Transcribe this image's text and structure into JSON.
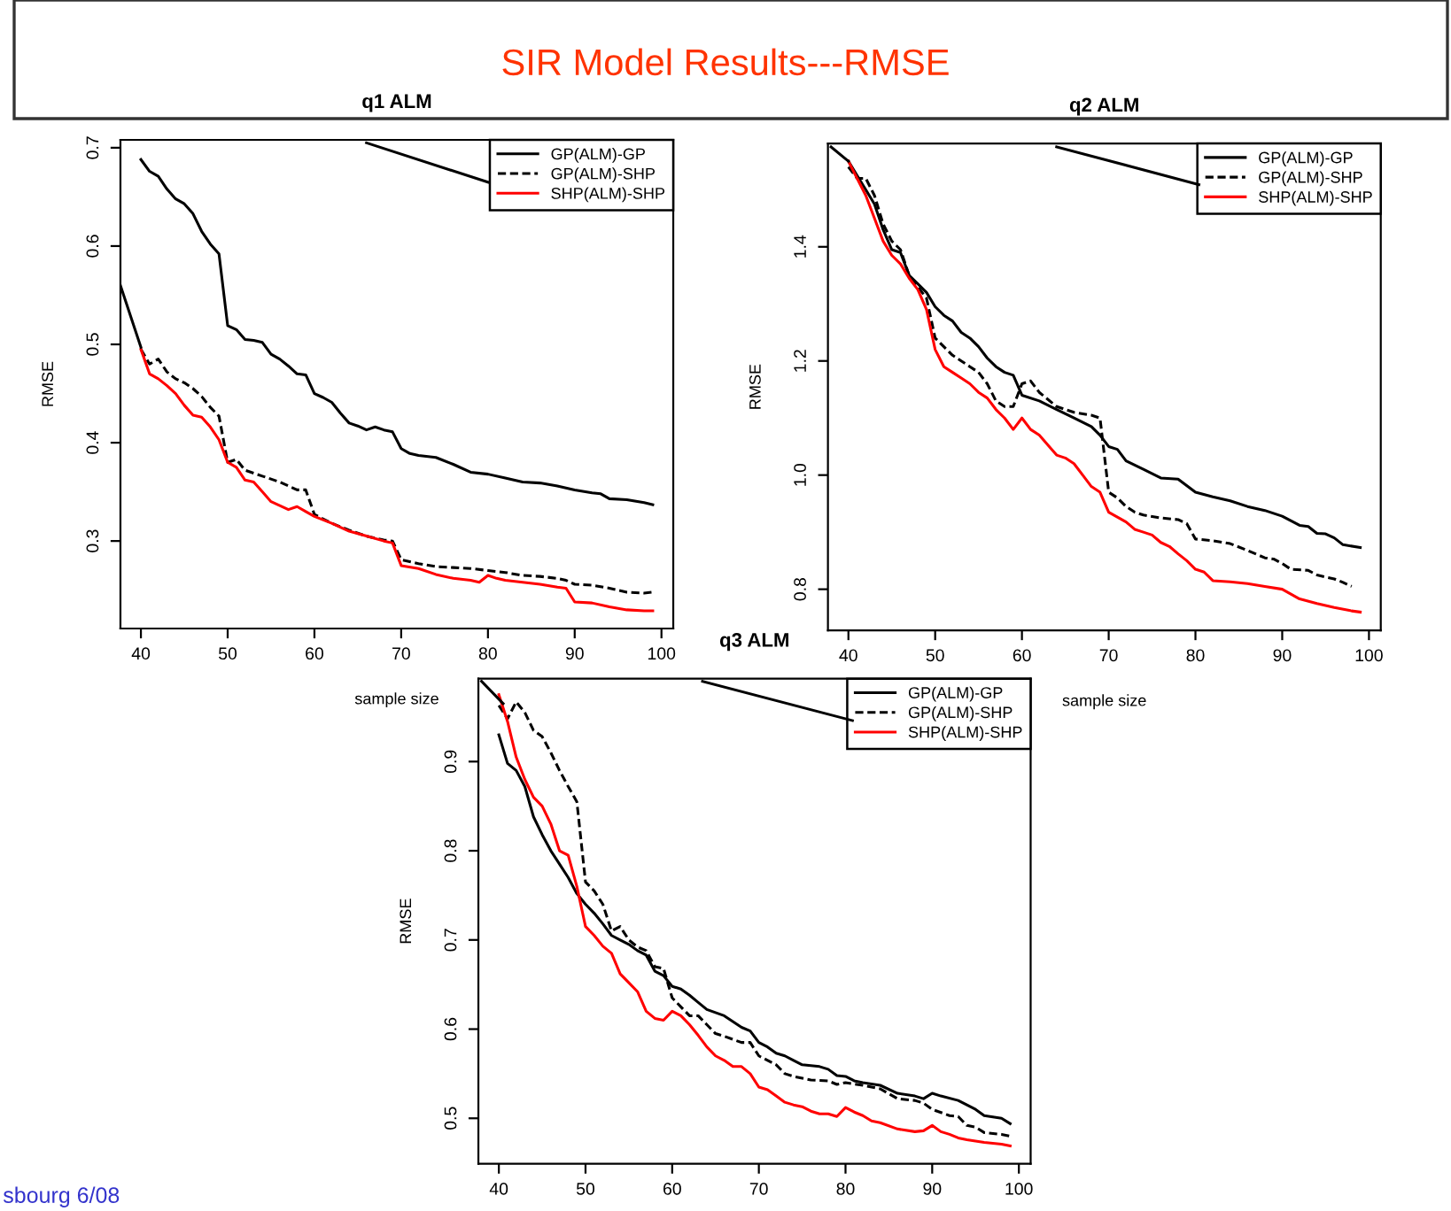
{
  "chart_data": [
    {
      "type": "other",
      "title": "SIR Model Results---RMSE",
      "annotations": [
        "sbourg 6/08"
      ]
    },
    {
      "type": "line",
      "title": "q1 ALM",
      "xlabel": "sample size",
      "ylabel": "RMSE",
      "xlim": [
        37.64,
        101.36
      ],
      "ylim": [
        0.211,
        0.708
      ],
      "xticks": [
        40,
        50,
        60,
        70,
        80,
        90,
        100
      ],
      "yticks": [
        0.3,
        0.4,
        0.5,
        0.6,
        0.7
      ],
      "legend": "top right",
      "series": [
        {
          "name": "GP(ALM)-GP",
          "color": "#000000",
          "line_style": "solid",
          "x": [
            40,
            41,
            42,
            43,
            44,
            45,
            46,
            47,
            48,
            49,
            50,
            51,
            52,
            53,
            54,
            55,
            56,
            57,
            58,
            59,
            60,
            61,
            62,
            63,
            64,
            65,
            66,
            67,
            68,
            69,
            70,
            71,
            72,
            74,
            76,
            78,
            80,
            82,
            84,
            86,
            88,
            90,
            92,
            93,
            94,
            96,
            98,
            99
          ],
          "values": [
            0.688,
            0.676,
            0.671,
            0.658,
            0.648,
            0.643,
            0.633,
            0.615,
            0.602,
            0.592,
            0.519,
            0.515,
            0.505,
            0.504,
            0.502,
            0.49,
            0.485,
            0.478,
            0.47,
            0.469,
            0.45,
            0.446,
            0.441,
            0.43,
            0.42,
            0.417,
            0.413,
            0.416,
            0.413,
            0.411,
            0.394,
            0.389,
            0.387,
            0.385,
            0.378,
            0.37,
            0.368,
            0.364,
            0.36,
            0.359,
            0.356,
            0.352,
            0.349,
            0.348,
            0.343,
            0.342,
            0.339,
            0.337
          ]
        },
        {
          "name": "GP(ALM)-SHP",
          "color": "#000000",
          "line_style": "dashed",
          "x": [
            40,
            41,
            42,
            43,
            44,
            45,
            46,
            47,
            48,
            49,
            50,
            51,
            52,
            54,
            56,
            58,
            59,
            60,
            62,
            64,
            66,
            68,
            69,
            70,
            72,
            74,
            76,
            78,
            80,
            82,
            84,
            86,
            88,
            89,
            90,
            92,
            94,
            96,
            98,
            99
          ],
          "values": [
            0.495,
            0.48,
            0.485,
            0.472,
            0.465,
            0.461,
            0.455,
            0.447,
            0.436,
            0.427,
            0.38,
            0.383,
            0.372,
            0.366,
            0.36,
            0.352,
            0.352,
            0.327,
            0.318,
            0.311,
            0.305,
            0.301,
            0.3,
            0.281,
            0.277,
            0.274,
            0.273,
            0.272,
            0.27,
            0.268,
            0.265,
            0.264,
            0.262,
            0.26,
            0.256,
            0.255,
            0.252,
            0.248,
            0.247,
            0.248
          ]
        },
        {
          "name": "SHP(ALM)-SHP",
          "color": "#ff0000",
          "line_style": "solid",
          "x": [
            40,
            41,
            42,
            43,
            44,
            45,
            46,
            47,
            48,
            49,
            50,
            51,
            52,
            53,
            54,
            55,
            56,
            57,
            58,
            59,
            60,
            62,
            64,
            66,
            68,
            69,
            70,
            72,
            74,
            76,
            78,
            79,
            80,
            81,
            82,
            84,
            86,
            88,
            89,
            90,
            92,
            94,
            96,
            98,
            99
          ],
          "values": [
            0.495,
            0.47,
            0.465,
            0.458,
            0.45,
            0.438,
            0.428,
            0.426,
            0.416,
            0.403,
            0.38,
            0.375,
            0.362,
            0.36,
            0.35,
            0.34,
            0.336,
            0.332,
            0.335,
            0.33,
            0.325,
            0.318,
            0.31,
            0.305,
            0.3,
            0.298,
            0.275,
            0.272,
            0.266,
            0.262,
            0.26,
            0.258,
            0.265,
            0.262,
            0.26,
            0.258,
            0.256,
            0.253,
            0.252,
            0.238,
            0.237,
            0.233,
            0.23,
            0.229,
            0.229
          ]
        },
        {
          "color": "#000000",
          "line_style": "solid",
          "x": [
            37.64,
            40,
            50,
            66,
            80
          ],
          "values": [
            0.56,
            0.497,
            null,
            0.705,
            0.665
          ]
        }
      ]
    },
    {
      "type": "line",
      "title": "q2 ALM",
      "xlabel": "sample size",
      "ylabel": "RMSE",
      "xlim": [
        37.64,
        101.36
      ],
      "ylim": [
        0.728,
        1.581
      ],
      "xticks": [
        40,
        50,
        60,
        70,
        80,
        90,
        100
      ],
      "yticks": [
        0.8,
        {
          "value": 1.0,
          "label": "1.0"
        },
        1.2,
        1.4
      ],
      "legend": "top right",
      "series": [
        {
          "name": "GP(ALM)-GP",
          "color": "#000000",
          "line_style": "solid",
          "x": [
            40,
            41,
            42,
            43,
            44,
            45,
            46,
            47,
            48,
            49,
            50,
            51,
            52,
            53,
            54,
            55,
            56,
            57,
            58,
            59,
            60,
            62,
            64,
            66,
            68,
            69,
            70,
            71,
            72,
            74,
            76,
            78,
            80,
            82,
            84,
            86,
            88,
            90,
            92,
            93,
            94,
            95,
            96,
            97,
            99
          ],
          "values": [
            1.55,
            1.525,
            1.5,
            1.475,
            1.43,
            1.395,
            1.39,
            1.35,
            1.335,
            1.32,
            1.295,
            1.28,
            1.27,
            1.25,
            1.24,
            1.225,
            1.205,
            1.19,
            1.18,
            1.175,
            1.14,
            1.13,
            1.115,
            1.1,
            1.085,
            1.07,
            1.05,
            1.045,
            1.025,
            1.01,
            0.995,
            0.993,
            0.97,
            0.962,
            0.955,
            0.945,
            0.938,
            0.928,
            0.912,
            0.91,
            0.898,
            0.897,
            0.89,
            0.878,
            0.873
          ]
        },
        {
          "name": "GP(ALM)-SHP",
          "color": "#000000",
          "line_style": "dashed",
          "x": [
            40,
            41,
            42,
            43,
            44,
            45,
            46,
            47,
            48,
            49,
            50,
            51,
            52,
            53,
            54,
            55,
            56,
            57,
            58,
            59,
            60,
            61,
            62,
            64,
            66,
            68,
            69,
            70,
            71,
            72,
            73,
            74,
            76,
            78,
            79,
            80,
            82,
            84,
            86,
            88,
            89,
            90,
            91,
            93,
            94,
            96,
            97,
            98
          ],
          "values": [
            1.54,
            1.52,
            1.52,
            1.49,
            1.44,
            1.41,
            1.395,
            1.35,
            1.33,
            1.31,
            1.24,
            1.225,
            1.21,
            1.2,
            1.19,
            1.18,
            1.16,
            1.13,
            1.12,
            1.12,
            1.16,
            1.165,
            1.145,
            1.12,
            1.11,
            1.105,
            1.1,
            0.97,
            0.96,
            0.945,
            0.935,
            0.93,
            0.925,
            0.922,
            0.915,
            0.888,
            0.885,
            0.88,
            0.868,
            0.855,
            0.853,
            0.845,
            0.835,
            0.833,
            0.825,
            0.818,
            0.812,
            0.805
          ]
        },
        {
          "name": "SHP(ALM)-SHP",
          "color": "#ff0000",
          "line_style": "solid",
          "x": [
            40,
            41,
            42,
            43,
            44,
            45,
            46,
            47,
            48,
            49,
            50,
            51,
            52,
            53,
            54,
            55,
            56,
            57,
            58,
            59,
            60,
            61,
            62,
            64,
            65,
            66,
            67,
            68,
            69,
            70,
            72,
            73,
            74,
            75,
            76,
            77,
            78,
            79,
            80,
            81,
            82,
            84,
            86,
            88,
            90,
            92,
            94,
            96,
            98,
            99
          ],
          "values": [
            1.55,
            1.52,
            1.49,
            1.45,
            1.41,
            1.385,
            1.37,
            1.345,
            1.325,
            1.29,
            1.22,
            1.19,
            1.18,
            1.17,
            1.16,
            1.145,
            1.135,
            1.115,
            1.1,
            1.08,
            1.1,
            1.08,
            1.07,
            1.035,
            1.03,
            1.02,
            1.0,
            0.98,
            0.97,
            0.935,
            0.918,
            0.905,
            0.9,
            0.895,
            0.882,
            0.875,
            0.862,
            0.85,
            0.835,
            0.83,
            0.815,
            0.813,
            0.81,
            0.805,
            0.8,
            0.783,
            0.775,
            0.768,
            0.762,
            0.76
          ]
        },
        {
          "color": "#000000",
          "line_style": "solid",
          "x": [
            38,
            40,
            50,
            64,
            80.4
          ],
          "values": [
            1.575,
            1.55,
            null,
            1.575,
            1.509
          ]
        }
      ]
    },
    {
      "type": "line",
      "title": "q3 ALM",
      "ylabel": "RMSE",
      "xlim": [
        37.64,
        101.36
      ],
      "ylim": [
        0.449,
        0.993
      ],
      "xticks": [
        40,
        50,
        60,
        70,
        80,
        90,
        100
      ],
      "yticks": [
        0.5,
        0.6,
        0.7,
        0.8,
        0.9
      ],
      "legend": "top right",
      "series": [
        {
          "name": "GP(ALM)-GP",
          "color": "#000000",
          "line_style": "solid",
          "x": [
            40,
            41,
            42,
            43,
            44,
            45,
            46,
            47,
            48,
            49,
            50,
            51,
            52,
            53,
            54,
            55,
            56,
            57,
            58,
            59,
            60,
            61,
            62,
            63,
            64,
            66,
            68,
            69,
            70,
            71,
            72,
            73,
            74,
            75,
            77,
            78,
            79,
            80,
            81,
            82,
            84,
            86,
            88,
            89,
            90,
            91,
            93,
            94,
            95,
            96,
            98,
            99
          ],
          "values": [
            0.93,
            0.898,
            0.89,
            0.872,
            0.838,
            0.818,
            0.8,
            0.785,
            0.77,
            0.752,
            0.74,
            0.73,
            0.718,
            0.705,
            0.7,
            0.695,
            0.688,
            0.683,
            0.665,
            0.66,
            0.648,
            0.645,
            0.638,
            0.63,
            0.622,
            0.615,
            0.602,
            0.598,
            0.585,
            0.58,
            0.573,
            0.57,
            0.565,
            0.56,
            0.558,
            0.555,
            0.548,
            0.547,
            0.542,
            0.54,
            0.537,
            0.528,
            0.525,
            0.522,
            0.528,
            0.525,
            0.52,
            0.515,
            0.51,
            0.503,
            0.5,
            0.494
          ]
        },
        {
          "name": "GP(ALM)-SHP",
          "color": "#000000",
          "line_style": "dashed",
          "x": [
            40,
            41,
            42,
            43,
            44,
            45,
            46,
            47,
            48,
            49,
            50,
            51,
            52,
            53,
            54,
            55,
            56,
            57,
            58,
            59,
            60,
            61,
            62,
            63,
            64,
            65,
            66,
            68,
            69,
            70,
            72,
            73,
            74,
            76,
            78,
            79,
            80,
            82,
            84,
            86,
            88,
            89,
            90,
            92,
            93,
            94,
            95,
            96,
            98,
            99
          ],
          "values": [
            0.963,
            0.948,
            0.967,
            0.955,
            0.935,
            0.928,
            0.91,
            0.89,
            0.872,
            0.855,
            0.765,
            0.755,
            0.74,
            0.71,
            0.715,
            0.7,
            0.692,
            0.688,
            0.67,
            0.668,
            0.635,
            0.625,
            0.615,
            0.615,
            0.605,
            0.595,
            0.592,
            0.585,
            0.585,
            0.57,
            0.56,
            0.55,
            0.547,
            0.543,
            0.542,
            0.538,
            0.54,
            0.537,
            0.533,
            0.522,
            0.52,
            0.517,
            0.51,
            0.503,
            0.502,
            0.492,
            0.49,
            0.484,
            0.482,
            0.48
          ]
        },
        {
          "name": "SHP(ALM)-SHP",
          "color": "#ff0000",
          "line_style": "solid",
          "x": [
            40,
            41,
            42,
            43,
            44,
            45,
            46,
            47,
            48,
            49,
            50,
            51,
            52,
            53,
            54,
            55,
            56,
            57,
            58,
            59,
            60,
            61,
            62,
            63,
            64,
            65,
            66,
            67,
            68,
            69,
            70,
            71,
            72,
            73,
            74,
            75,
            76,
            77,
            78,
            79,
            80,
            81,
            82,
            83,
            84,
            86,
            88,
            89,
            90,
            91,
            92,
            93,
            94,
            96,
            98,
            99
          ],
          "values": [
            0.975,
            0.945,
            0.905,
            0.88,
            0.86,
            0.85,
            0.83,
            0.8,
            0.795,
            0.76,
            0.715,
            0.705,
            0.693,
            0.685,
            0.662,
            0.652,
            0.642,
            0.62,
            0.612,
            0.61,
            0.62,
            0.615,
            0.605,
            0.593,
            0.58,
            0.57,
            0.565,
            0.558,
            0.558,
            0.55,
            0.535,
            0.532,
            0.525,
            0.518,
            0.515,
            0.513,
            0.508,
            0.505,
            0.505,
            0.502,
            0.512,
            0.507,
            0.503,
            0.497,
            0.495,
            0.488,
            0.485,
            0.486,
            0.492,
            0.485,
            0.482,
            0.478,
            0.476,
            0.473,
            0.471,
            0.469
          ]
        },
        {
          "color": "#000000",
          "line_style": "solid",
          "x": [
            38,
            40.5,
            50,
            63.5,
            80.8
          ],
          "values": [
            0.99,
            0.965,
            null,
            0.99,
            0.946
          ]
        }
      ]
    }
  ]
}
